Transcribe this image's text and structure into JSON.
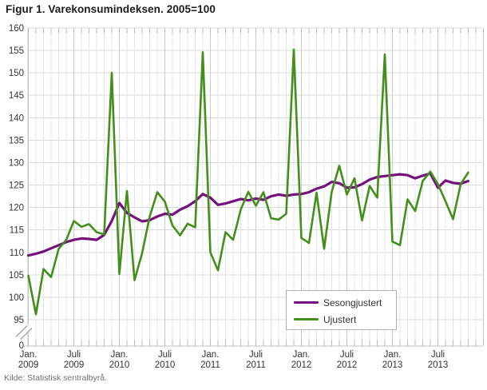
{
  "title": "Figur 1. Varekonsumindeksen. 2005=100",
  "source": "Kilde: Statistisk sentralbyrå.",
  "legend": {
    "items": [
      {
        "label": "Sesongjustert",
        "color": "#75117d"
      },
      {
        "label": "Ujustert",
        "color": "#438f1c"
      }
    ]
  },
  "chart_data": {
    "type": "line",
    "title": "Figur 1. Varekonsumindeksen. 2005=100",
    "xlabel": "",
    "ylabel": "",
    "ylim": [
      95,
      160
    ],
    "y_axis_break_to_zero": true,
    "yticks": [
      95,
      100,
      105,
      110,
      115,
      120,
      125,
      130,
      135,
      140,
      145,
      150,
      155,
      160
    ],
    "zero_label": "0",
    "grid": "monthly vertical + 5-unit horizontal",
    "legend_position": "inside lower right",
    "x_start": "Jan 2009",
    "x_end": "Nov 2013",
    "x_tick_labels": [
      {
        "line1": "Jan.",
        "line2": "2009",
        "month_index": 0
      },
      {
        "line1": "Juli",
        "line2": "2009",
        "month_index": 6
      },
      {
        "line1": "Jan.",
        "line2": "2010",
        "month_index": 12
      },
      {
        "line1": "Juli",
        "line2": "2010",
        "month_index": 18
      },
      {
        "line1": "Jan.",
        "line2": "2011",
        "month_index": 24
      },
      {
        "line1": "Juli",
        "line2": "2011",
        "month_index": 30
      },
      {
        "line1": "Jan.",
        "line2": "2012",
        "month_index": 36
      },
      {
        "line1": "Juli",
        "line2": "2012",
        "month_index": 42
      },
      {
        "line1": "Jan.",
        "line2": "2013",
        "month_index": 48
      },
      {
        "line1": "Juli",
        "line2": "2013",
        "month_index": 54
      }
    ],
    "series": [
      {
        "name": "Sesongjustert",
        "color": "#75117d",
        "values": [
          109.3,
          109.7,
          110.2,
          110.9,
          111.6,
          112.3,
          112.8,
          113.1,
          113.0,
          112.8,
          113.9,
          117.0,
          121.0,
          118.8,
          117.8,
          116.9,
          117.2,
          118.0,
          118.6,
          118.4,
          119.5,
          120.3,
          121.4,
          123.0,
          122.2,
          120.6,
          120.9,
          121.4,
          121.9,
          121.6,
          122.0,
          121.7,
          122.5,
          122.9,
          122.6,
          122.9,
          123.0,
          123.4,
          124.2,
          124.7,
          125.7,
          125.4,
          124.4,
          124.5,
          125.2,
          126.2,
          126.8,
          127.0,
          127.2,
          127.4,
          127.2,
          126.5,
          127.1,
          127.6,
          124.4,
          126.0,
          125.5,
          125.3,
          125.9
        ]
      },
      {
        "name": "Ujustert",
        "color": "#438f1c",
        "values": [
          104.8,
          96.2,
          106.3,
          104.5,
          110.8,
          112.8,
          117.0,
          115.7,
          116.3,
          114.5,
          114.0,
          150.0,
          105.2,
          123.7,
          103.8,
          109.8,
          118.0,
          123.4,
          121.3,
          116.0,
          113.8,
          116.4,
          115.6,
          154.6,
          110.0,
          106.0,
          114.5,
          112.8,
          119.5,
          123.5,
          120.4,
          123.4,
          117.6,
          117.3,
          118.6,
          155.2,
          113.2,
          112.1,
          123.3,
          110.8,
          123.5,
          129.3,
          122.9,
          126.5,
          117.1,
          124.8,
          122.2,
          154.1,
          112.4,
          111.6,
          121.8,
          119.2,
          125.9,
          128.0,
          125.2,
          121.4,
          117.4,
          125.2,
          127.8
        ]
      }
    ]
  }
}
